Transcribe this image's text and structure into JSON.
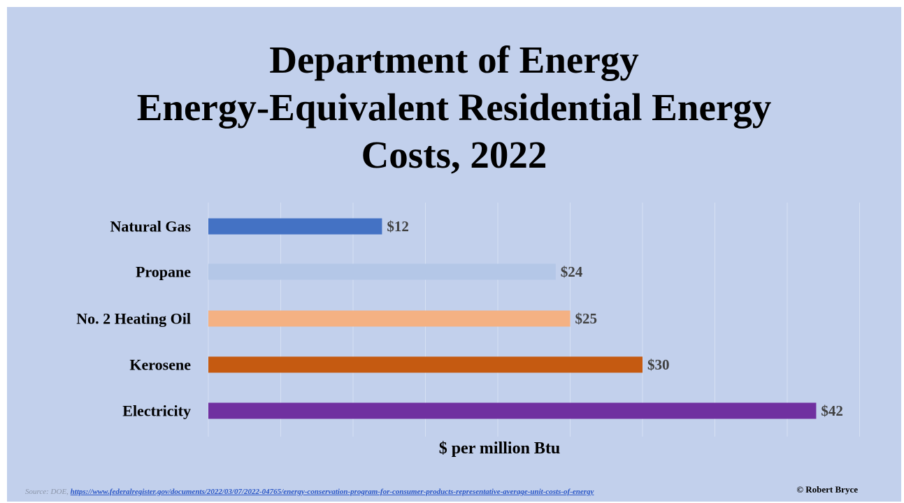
{
  "title": {
    "line1": "Department of Energy",
    "line2": "Energy-Equivalent Residential Energy",
    "line3": "Costs, 2022"
  },
  "chart_data": {
    "type": "bar",
    "orientation": "horizontal",
    "categories": [
      "Natural Gas",
      "Propane",
      "No. 2 Heating Oil",
      "Kerosene",
      "Electricity"
    ],
    "values": [
      12,
      24,
      25,
      30,
      42
    ],
    "data_labels": [
      "$12",
      "$24",
      "$25",
      "$30",
      "$42"
    ],
    "colors": [
      "#4472c4",
      "#b4c7e7",
      "#f4b183",
      "#c55a11",
      "#7030a0"
    ],
    "title": "Department of Energy Energy-Equivalent Residential Energy Costs, 2022",
    "xlabel": "$ per million Btu",
    "ylabel": "",
    "xlim": [
      0,
      45
    ],
    "grid": true,
    "legend": "none"
  },
  "source": {
    "prefix": "Source: DOE,",
    "link_text": "https://www.federalregister.gov/documents/2022/03/07/2022-04765/energy-conservation-program-for-consumer-products-representative-average-unit-costs-of-energy"
  },
  "credit": "© Robert Bryce",
  "colors": {
    "background": "#c2d0ec",
    "gridline": "#d6e0f3"
  }
}
